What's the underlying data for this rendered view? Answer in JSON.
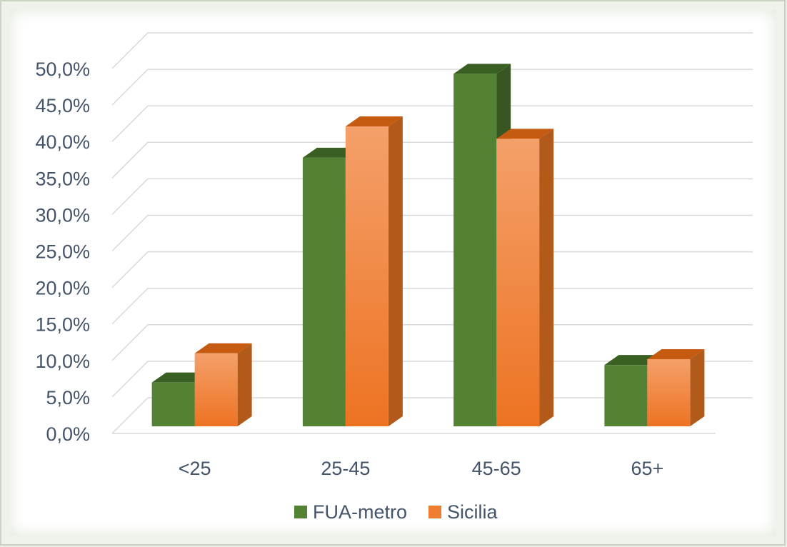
{
  "chart_data": {
    "type": "bar",
    "categories": [
      "<25",
      "25-45",
      "45-65",
      "65+"
    ],
    "series": [
      {
        "name": "FUA-metro",
        "values": [
          6.0,
          36.8,
          48.3,
          8.4
        ],
        "color": "#548235",
        "top_color": "#3a5f23",
        "side_color": "#375623"
      },
      {
        "name": "Sicilia",
        "values": [
          10.0,
          41.1,
          39.4,
          9.2
        ],
        "color": "#ed7d31",
        "top_color": "#c55a11",
        "side_color": "#b25a1a"
      }
    ],
    "ylim": [
      0,
      50
    ],
    "y_ticks": [
      "0,0%",
      "5,0%",
      "10,0%",
      "15,0%",
      "20,0%",
      "25,0%",
      "30,0%",
      "35,0%",
      "40,0%",
      "45,0%",
      "50,0%"
    ],
    "grid": true,
    "legend_position": "bottom",
    "title": "",
    "xlabel": "",
    "ylabel": ""
  }
}
